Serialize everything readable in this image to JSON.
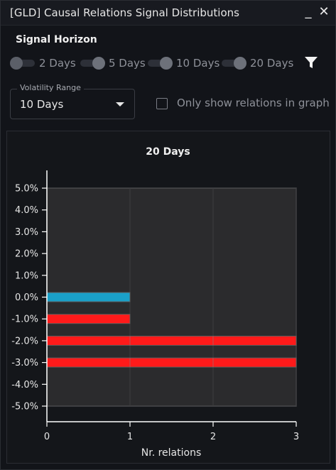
{
  "window": {
    "title": "[GLD] Causal Relations Signal Distributions",
    "minimize_label": "_",
    "close_label": "✕"
  },
  "signal_horizon": {
    "title": "Signal Horizon",
    "options": [
      {
        "label": "2 Days",
        "on": false
      },
      {
        "label": "5 Days",
        "on": true
      },
      {
        "label": "10 Days",
        "on": true
      },
      {
        "label": "20 Days",
        "on": true
      }
    ],
    "filter_icon": "filter-icon"
  },
  "volatility": {
    "label": "Volatility Range",
    "value": "10 Days"
  },
  "only_graph": {
    "label": "Only show relations in graph",
    "checked": false
  },
  "chart_data": {
    "type": "bar",
    "orientation": "horizontal",
    "title": "20 Days",
    "xlabel": "Nr. relations",
    "ylabel": "",
    "categories": [
      "5.0%",
      "4.0%",
      "3.0%",
      "2.0%",
      "1.0%",
      "0.0%",
      "-1.0%",
      "-2.0%",
      "-3.0%",
      "-4.0%",
      "-5.0%"
    ],
    "values": [
      0,
      0,
      0,
      0,
      0,
      1,
      1,
      3,
      3,
      0,
      0
    ],
    "bar_colors": [
      "#ff1a1a",
      "#ff1a1a",
      "#ff1a1a",
      "#ff1a1a",
      "#ff1a1a",
      "#1aa0c8",
      "#ff1a1a",
      "#ff1a1a",
      "#ff1a1a",
      "#ff1a1a",
      "#ff1a1a"
    ],
    "xticks": [
      "0",
      "1",
      "2",
      "3"
    ],
    "xlim": [
      0,
      3
    ],
    "grid": true
  }
}
